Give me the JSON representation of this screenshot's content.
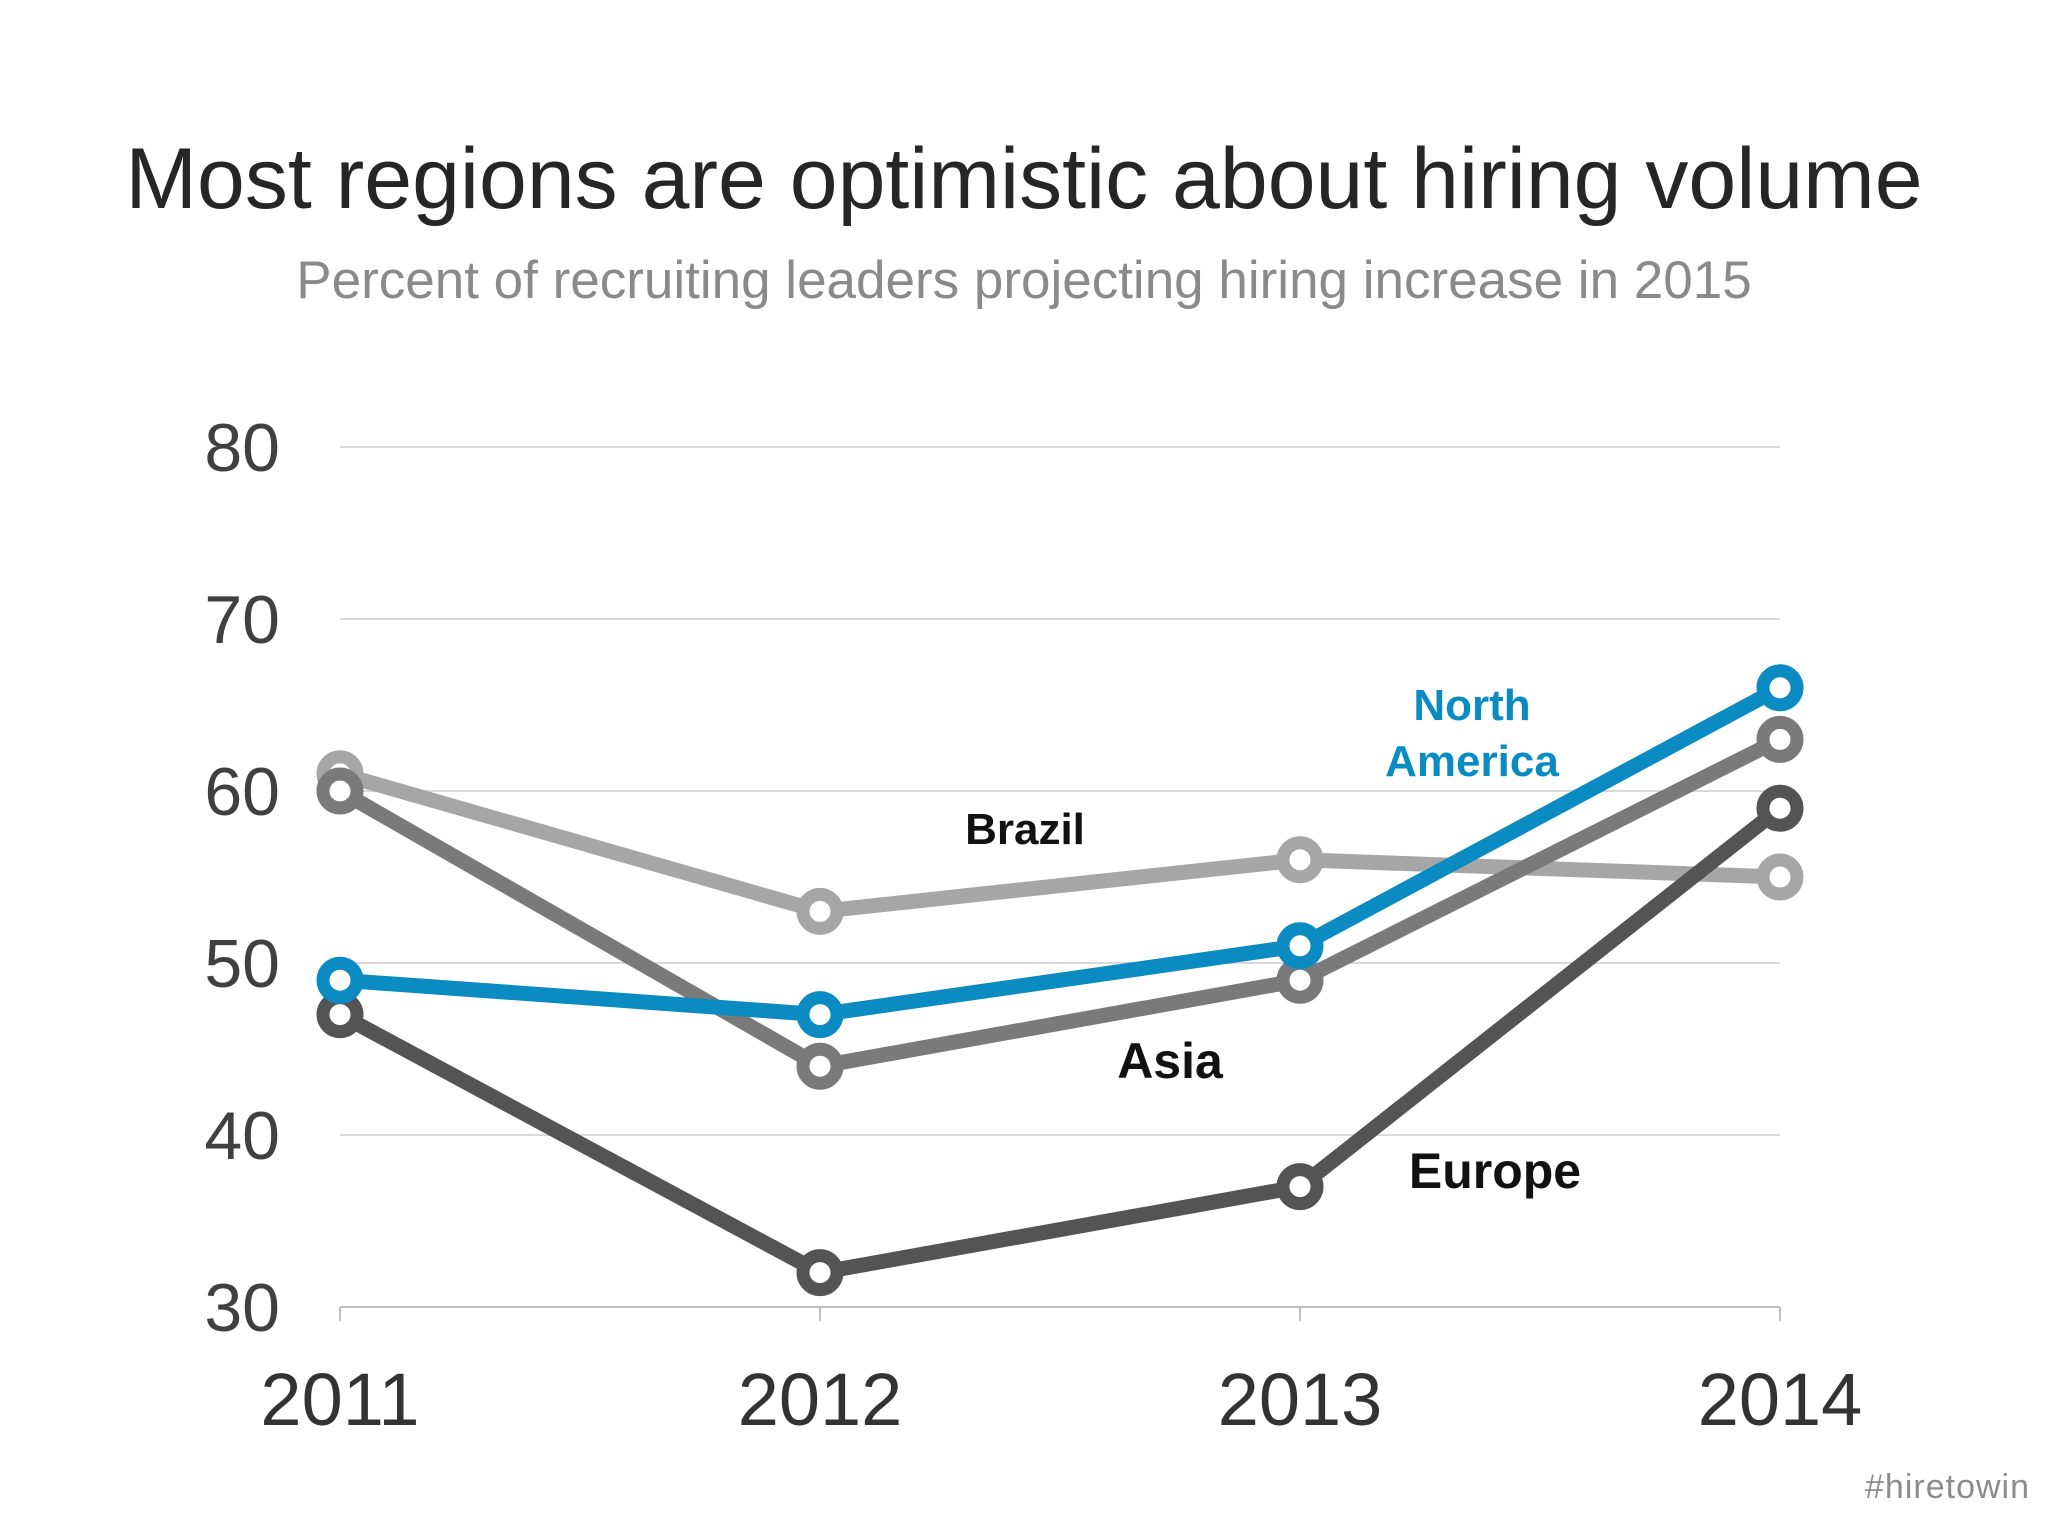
{
  "title": "Most regions are optimistic about hiring volume",
  "subtitle": "Percent of recruiting leaders projecting hiring increase in 2015",
  "hashtag": "#hiretowin",
  "chart_data": {
    "type": "line",
    "x": [
      "2011",
      "2012",
      "2013",
      "2014"
    ],
    "ylim": [
      30,
      80
    ],
    "yticks": [
      30,
      40,
      50,
      60,
      70,
      80
    ],
    "grid": true,
    "series": [
      {
        "name": "Brazil",
        "color": "#a6a6a6",
        "values": [
          61,
          53,
          56,
          55
        ]
      },
      {
        "name": "Asia",
        "color": "#7a7a7a",
        "values": [
          60,
          44,
          49,
          63
        ]
      },
      {
        "name": "Europe",
        "color": "#545454",
        "values": [
          47,
          32,
          37,
          59
        ]
      },
      {
        "name": "North America",
        "label_lines": [
          "North",
          "America"
        ],
        "color": "#0a8cc3",
        "values": [
          49,
          47,
          51,
          66
        ]
      }
    ]
  }
}
